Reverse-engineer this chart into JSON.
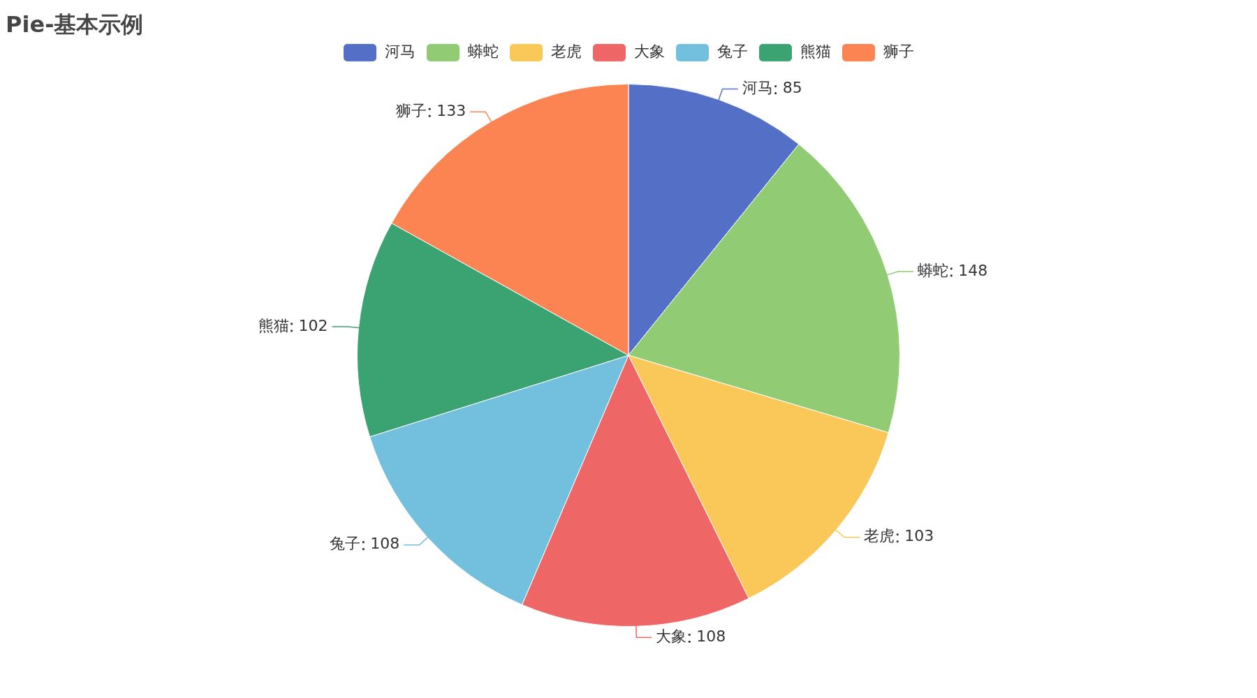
{
  "chart_data": {
    "type": "pie",
    "title": "Pie-基本示例",
    "categories": [
      "河马",
      "蟒蛇",
      "老虎",
      "大象",
      "兔子",
      "熊猫",
      "狮子"
    ],
    "values": [
      85,
      148,
      103,
      108,
      108,
      102,
      133
    ],
    "colors": [
      "#5470c6",
      "#91cc75",
      "#fac858",
      "#ee6666",
      "#73c0de",
      "#3ba272",
      "#fc8452"
    ],
    "legend": "top",
    "data_labels": true
  }
}
